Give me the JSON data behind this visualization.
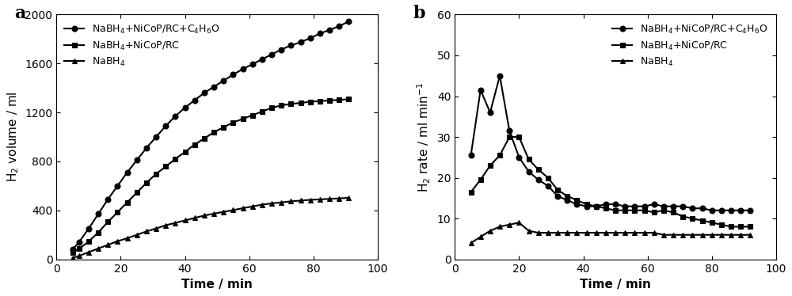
{
  "panel_a": {
    "time": [
      5,
      7,
      10,
      13,
      16,
      19,
      22,
      25,
      28,
      31,
      34,
      37,
      40,
      43,
      46,
      49,
      52,
      55,
      58,
      61,
      64,
      67,
      70,
      73,
      76,
      79,
      82,
      85,
      88,
      91
    ],
    "series1_circle": [
      80,
      140,
      250,
      370,
      490,
      600,
      710,
      810,
      910,
      1000,
      1090,
      1170,
      1240,
      1300,
      1360,
      1410,
      1460,
      1510,
      1555,
      1595,
      1635,
      1675,
      1715,
      1748,
      1775,
      1808,
      1845,
      1875,
      1905,
      1945
    ],
    "series2_square": [
      55,
      85,
      145,
      220,
      305,
      385,
      465,
      545,
      625,
      698,
      758,
      820,
      878,
      938,
      988,
      1038,
      1080,
      1118,
      1148,
      1178,
      1208,
      1238,
      1258,
      1270,
      1278,
      1288,
      1293,
      1298,
      1303,
      1308
    ],
    "series3_triangle": [
      10,
      28,
      58,
      88,
      118,
      148,
      172,
      200,
      228,
      252,
      278,
      298,
      318,
      338,
      358,
      373,
      388,
      402,
      418,
      432,
      447,
      457,
      465,
      474,
      480,
      486,
      490,
      494,
      498,
      503
    ],
    "xlabel": "Time / min",
    "ylabel": "H$_2$ volume / ml",
    "xlim": [
      0,
      100
    ],
    "ylim": [
      0,
      2000
    ],
    "xticks": [
      0,
      20,
      40,
      60,
      80,
      100
    ],
    "yticks": [
      0,
      400,
      800,
      1200,
      1600,
      2000
    ],
    "label_circle": "NaBH$_4$+NiCoP/RC+C$_4$H$_6$O",
    "label_square": "NaBH$_4$+NiCoP/RC",
    "label_triangle": "NaBH$_4$",
    "panel_label": "a"
  },
  "panel_b": {
    "time": [
      5,
      8,
      11,
      14,
      17,
      20,
      23,
      26,
      29,
      32,
      35,
      38,
      41,
      44,
      47,
      50,
      53,
      56,
      59,
      62,
      65,
      68,
      71,
      74,
      77,
      80,
      83,
      86,
      89,
      92
    ],
    "series1_circle": [
      25.5,
      41.5,
      36.0,
      45.0,
      31.5,
      25.0,
      21.5,
      19.5,
      18.0,
      15.5,
      14.5,
      13.5,
      13.0,
      13.0,
      13.5,
      13.5,
      13.0,
      13.0,
      13.0,
      13.5,
      13.0,
      13.0,
      13.0,
      12.5,
      12.5,
      12.0,
      12.0,
      12.0,
      12.0,
      12.0
    ],
    "series2_square": [
      16.5,
      19.5,
      23.0,
      25.5,
      30.0,
      30.0,
      24.5,
      22.0,
      20.0,
      17.0,
      15.5,
      14.5,
      13.5,
      13.0,
      12.5,
      12.0,
      12.0,
      12.0,
      12.0,
      11.5,
      12.0,
      11.5,
      10.5,
      10.0,
      9.5,
      9.0,
      8.5,
      8.0,
      8.0,
      8.0
    ],
    "series3_triangle": [
      4.0,
      5.5,
      7.0,
      8.0,
      8.5,
      9.0,
      7.0,
      6.5,
      6.5,
      6.5,
      6.5,
      6.5,
      6.5,
      6.5,
      6.5,
      6.5,
      6.5,
      6.5,
      6.5,
      6.5,
      6.0,
      6.0,
      6.0,
      6.0,
      6.0,
      6.0,
      6.0,
      6.0,
      6.0,
      6.0
    ],
    "xlabel": "Time / min",
    "ylabel": "H$_2$ rate / ml min$^{-1}$",
    "xlim": [
      0,
      100
    ],
    "ylim": [
      0,
      60
    ],
    "xticks": [
      0,
      20,
      40,
      60,
      80,
      100
    ],
    "yticks": [
      0,
      10,
      20,
      30,
      40,
      50,
      60
    ],
    "label_circle": "NaBH$_4$+NiCoP/RC+C$_4$H$_6$O",
    "label_square": "NaBH$_4$+NiCoP/RC",
    "label_triangle": "NaBH$_4$",
    "panel_label": "b"
  },
  "line_color": "#000000",
  "marker_circle": "o",
  "marker_square": "s",
  "marker_triangle": "^",
  "markersize": 5,
  "linewidth": 1.5,
  "background_color": "#ffffff",
  "font_size_label": 11,
  "font_size_tick": 10,
  "font_size_legend": 9,
  "font_size_panel": 16
}
